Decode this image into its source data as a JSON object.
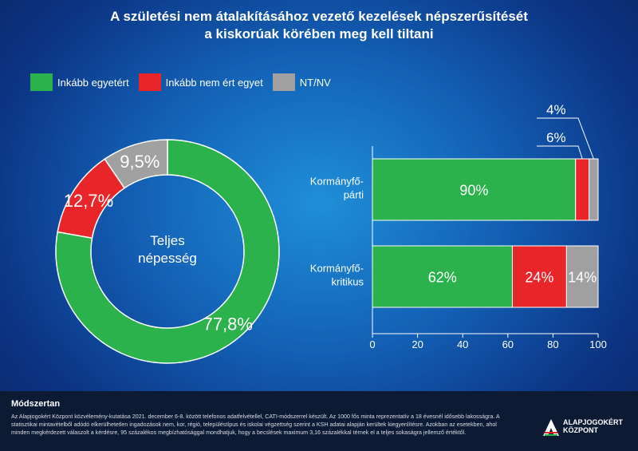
{
  "title": {
    "line1": "A születési nem átalakításához vezető kezelések népszerűsítését",
    "line2": "a kiskorúak körében meg kell tiltani"
  },
  "legend": [
    {
      "label": "Inkább egyetért",
      "color": "#2bb24c"
    },
    {
      "label": "Inkább nem ért egyet",
      "color": "#e8262a"
    },
    {
      "label": "NT/NV",
      "color": "#a0a0a0"
    }
  ],
  "chart_data": [
    {
      "type": "pie",
      "center_label": [
        "Teljes",
        "népesség"
      ],
      "slices": [
        {
          "label": "Inkább egyetért",
          "value": 77.8,
          "display": "77,8%",
          "color": "#2bb24c"
        },
        {
          "label": "Inkább nem ért egyet",
          "value": 12.7,
          "display": "12,7%",
          "color": "#e8262a"
        },
        {
          "label": "NT/NV",
          "value": 9.5,
          "display": "9,5%",
          "color": "#a0a0a0"
        }
      ]
    },
    {
      "type": "bar",
      "orientation": "horizontal",
      "stacked": true,
      "categories": [
        [
          "Kormányfő-",
          "párti"
        ],
        [
          "Kormányfő-",
          "kritikus"
        ]
      ],
      "series": [
        {
          "name": "Inkább egyetért",
          "color": "#2bb24c",
          "values": [
            90,
            62
          ],
          "labels": [
            "90%",
            "62%"
          ]
        },
        {
          "name": "Inkább nem ért egyet",
          "color": "#e8262a",
          "values": [
            6,
            24
          ],
          "labels": [
            "6%",
            "24%"
          ]
        },
        {
          "name": "NT/NV",
          "color": "#a0a0a0",
          "values": [
            4,
            14
          ],
          "labels": [
            "4%",
            "14%"
          ]
        }
      ],
      "xlim": [
        0,
        100
      ],
      "xticks": [
        "0",
        "20",
        "40",
        "60",
        "80",
        "100"
      ]
    }
  ],
  "footer": {
    "heading": "Módszertan",
    "text": "Az Alapjogokért Központ közvélemény-kutatása 2021. december 6-8. között telefonos adatfelvétellel, CATI-módszerrel készült. Az 1000 fős minta reprezentatív a 18 évesnél idősebb lakosságra. A statisztikai mintavételből adódó elkerülhetetlen ingadozások nem, kor, régió, településtípus és iskolai végzettség szerint a KSH adatai alapján kerültek kiegyenlítésre. Azokban az esetekben, ahol minden megkérdezett válaszolt a kérdésre, 95 százalékos megbízhatósággal mondhatjuk, hogy a becslések maximum 3,16 százalékkal térnek el a teljes sokaságra jellemző értéktől.",
    "logo_line1": "ALAPJOGOKÉRT",
    "logo_line2": "KÖZPONT"
  }
}
